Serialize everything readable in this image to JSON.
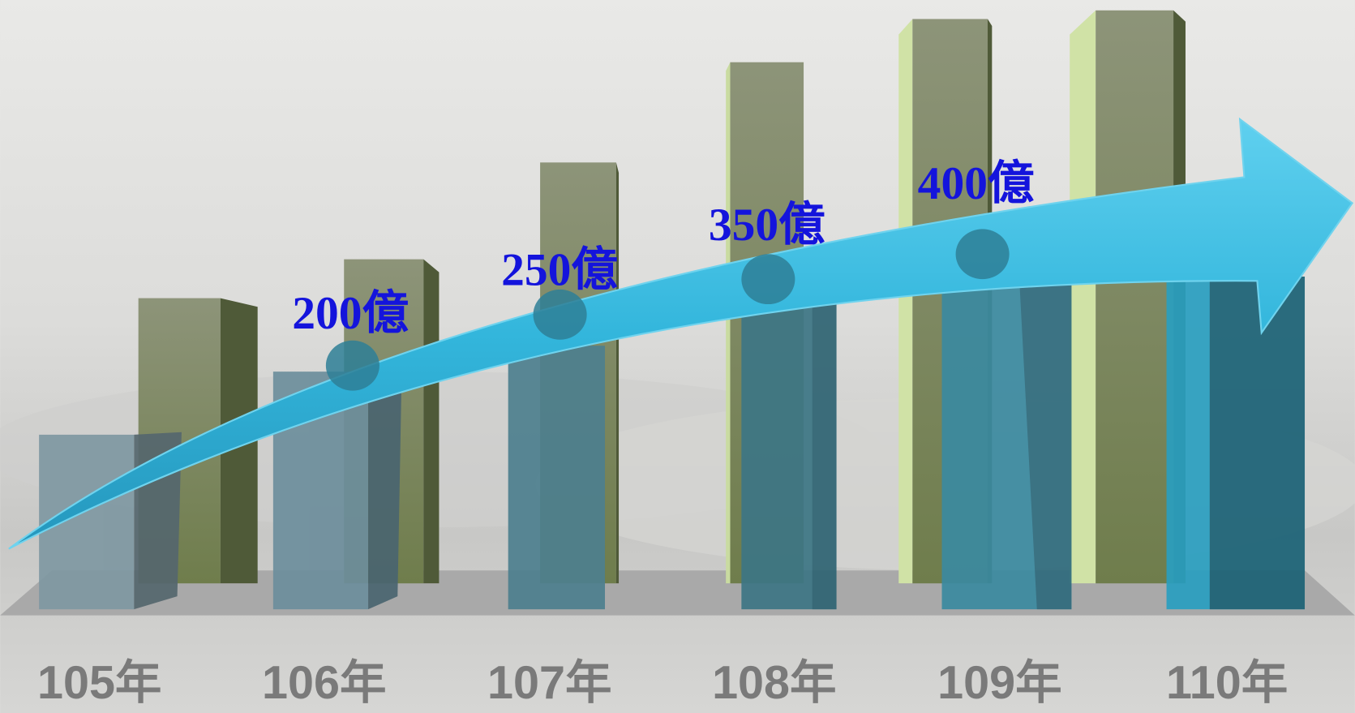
{
  "years": [
    "105年",
    "106年",
    "107年",
    "108年",
    "109年",
    "110年"
  ],
  "milestones": [
    "200億",
    "250億",
    "350億",
    "400億"
  ]
}
